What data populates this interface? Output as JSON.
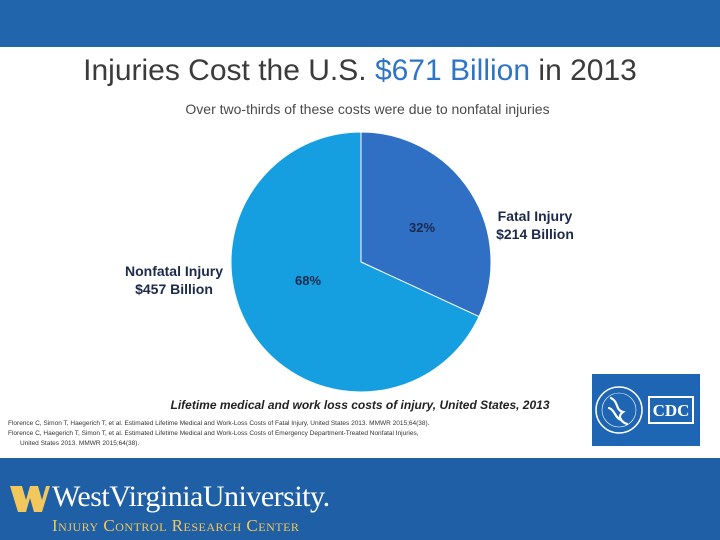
{
  "title": {
    "prefix": "Injuries Cost the U.S.",
    "highlight": "$671 Billion",
    "suffix": "in 2013"
  },
  "subtitle": "Over two-thirds of these costs were due to nonfatal injuries",
  "caption": "Lifetime medical and work loss costs of injury, United States, 2013",
  "references": [
    "Florence C, Simon T, Haegerich T, et al. Estimated Lifetime Medical and Work-Loss Costs of Fatal Injury, United States 2013. MMWR 2015;64(38).",
    "Florence C, Haegerich T, Simon T, et al. Estimated Lifetime Medical and Work-Loss Costs of Emergency Department-Treated Nonfatal Injuries,",
    "United States 2013. MMWR 2015;64(38)."
  ],
  "logo": {
    "cdc": "CDC",
    "university": "WestVirginiaUniversity.",
    "center": "Injury Control Research Center"
  },
  "colors": {
    "fatal": "#2f6fc4",
    "nonfatal": "#159ee0",
    "accent": "#2e75c9",
    "wvu_gold": "#f2c75c",
    "wvu_blue": "#1f5fa6"
  },
  "chart_data": {
    "type": "pie",
    "slices": [
      {
        "name": "Fatal Injury",
        "value": 214,
        "percent": "32%",
        "label_line1": "Fatal Injury",
        "label_line2": "$214 Billion"
      },
      {
        "name": "Nonfatal Injury",
        "value": 457,
        "percent": "68%",
        "label_line1": "Nonfatal Injury",
        "label_line2": "$457 Billion"
      }
    ],
    "total": 671,
    "units": "Billion $",
    "year": "2013"
  }
}
